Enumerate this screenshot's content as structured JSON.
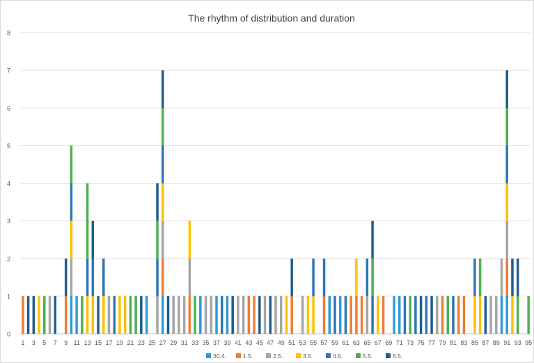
{
  "chart_data": {
    "type": "bar",
    "stacked": true,
    "title": "The rhythm of distribution and duration",
    "xlabel": "",
    "ylabel": "",
    "ylim": [
      0,
      8
    ],
    "yticks": [
      0,
      1,
      2,
      3,
      4,
      5,
      6,
      7,
      8
    ],
    "xtick_labels": [
      "1",
      "3",
      "5",
      "7",
      "9",
      "11",
      "13",
      "15",
      "17",
      "19",
      "21",
      "23",
      "25",
      "27",
      "29",
      "31",
      "33",
      "35",
      "37",
      "39",
      "41",
      "43",
      "45",
      "47",
      "49",
      "51",
      "53",
      "55",
      "57",
      "59",
      "61",
      "63",
      "65",
      "67",
      "69",
      "71",
      "73",
      "75",
      "77",
      "79",
      "81",
      "83",
      "85",
      "87",
      "89",
      "91",
      "93",
      "95"
    ],
    "grid": true,
    "legend_position": "bottom",
    "colors": {
      "30.4.": "#2E9AD6",
      "1.5.": "#ED7D31",
      "2.5.": "#A5A5A5",
      "3.5.": "#FFC000",
      "4.5.": "#2E75B6",
      "5.5.": "#4CB050",
      "6.5.": "#1F5C8B"
    },
    "categories": [
      1,
      2,
      3,
      4,
      5,
      6,
      7,
      8,
      9,
      10,
      11,
      12,
      13,
      14,
      15,
      16,
      17,
      18,
      19,
      20,
      21,
      22,
      23,
      24,
      25,
      26,
      27,
      28,
      29,
      30,
      31,
      32,
      33,
      34,
      35,
      36,
      37,
      38,
      39,
      40,
      41,
      42,
      43,
      44,
      45,
      46,
      47,
      48,
      49,
      50,
      51,
      52,
      53,
      54,
      55,
      56,
      57,
      58,
      59,
      60,
      61,
      62,
      63,
      64,
      65,
      66,
      67,
      68,
      69,
      70,
      71,
      72,
      73,
      74,
      75,
      76,
      77,
      78,
      79,
      80,
      81,
      82,
      83,
      84,
      85,
      86,
      87,
      88,
      89,
      90,
      91,
      92,
      93,
      94,
      95
    ],
    "series": [
      {
        "name": "30.4.",
        "values": [
          0,
          0,
          0,
          0,
          0,
          0,
          0,
          0,
          0,
          1,
          1,
          0,
          0,
          0,
          0,
          0,
          0,
          0,
          0,
          0,
          0,
          0,
          0,
          1,
          0,
          0,
          1,
          0,
          0,
          0,
          0,
          0,
          0,
          1,
          0,
          0,
          1,
          0,
          1,
          0,
          0,
          0,
          0,
          0,
          0,
          0,
          0,
          0,
          0,
          0,
          0,
          0,
          0,
          0,
          0,
          0,
          0,
          1,
          0,
          1,
          0,
          0,
          0,
          0,
          0,
          0,
          0,
          0,
          0,
          1,
          1,
          0,
          0,
          0,
          0,
          0,
          0,
          0,
          0,
          0,
          0,
          0,
          0,
          0,
          0,
          0,
          0,
          0,
          0,
          1,
          1,
          0,
          0,
          0,
          0
        ]
      },
      {
        "name": "1.5.",
        "values": [
          1,
          0,
          0,
          0,
          0,
          0,
          0,
          0,
          1,
          0,
          0,
          0,
          0,
          0,
          0,
          0,
          0,
          0,
          0,
          0,
          0,
          0,
          0,
          0,
          0,
          0,
          1,
          0,
          0,
          0,
          0,
          1,
          0,
          0,
          0,
          0,
          0,
          0,
          0,
          0,
          0,
          0,
          1,
          1,
          0,
          0,
          0,
          0,
          0,
          0,
          1,
          0,
          0,
          0,
          0,
          0,
          1,
          0,
          0,
          0,
          0,
          1,
          1,
          1,
          0,
          0,
          0,
          1,
          0,
          0,
          0,
          0,
          0,
          0,
          0,
          0,
          0,
          0,
          1,
          0,
          0,
          1,
          1,
          0,
          0,
          0,
          0,
          0,
          0,
          0,
          1,
          0,
          0,
          0,
          0
        ]
      },
      {
        "name": "2.5.",
        "values": [
          0,
          0,
          0,
          0,
          0,
          1,
          0,
          0,
          0,
          1,
          0,
          0,
          0,
          0,
          0,
          0,
          1,
          0,
          0,
          0,
          0,
          0,
          0,
          0,
          0,
          1,
          1,
          0,
          1,
          1,
          1,
          1,
          0,
          0,
          1,
          1,
          0,
          0,
          0,
          0,
          1,
          1,
          0,
          0,
          0,
          1,
          0,
          1,
          1,
          0,
          0,
          0,
          1,
          0,
          0,
          0,
          0,
          0,
          0,
          0,
          0,
          0,
          0,
          0,
          1,
          0,
          0,
          0,
          0,
          0,
          0,
          0,
          0,
          0,
          0,
          0,
          0,
          1,
          0,
          0,
          0,
          0,
          0,
          0,
          0,
          0,
          0,
          1,
          1,
          1,
          1,
          0,
          0,
          0,
          0
        ]
      },
      {
        "name": "3.5.",
        "values": [
          0,
          0,
          0,
          1,
          0,
          0,
          0,
          0,
          0,
          1,
          0,
          0,
          1,
          1,
          0,
          1,
          0,
          0,
          1,
          1,
          0,
          0,
          0,
          0,
          0,
          0,
          1,
          0,
          0,
          0,
          0,
          1,
          0,
          0,
          0,
          0,
          0,
          0,
          0,
          0,
          0,
          0,
          0,
          0,
          0,
          0,
          0,
          0,
          0,
          1,
          0,
          0,
          0,
          1,
          1,
          0,
          0,
          0,
          0,
          0,
          0,
          0,
          1,
          0,
          0,
          0,
          1,
          0,
          0,
          0,
          0,
          0,
          0,
          0,
          0,
          0,
          0,
          0,
          0,
          0,
          0,
          0,
          0,
          0,
          1,
          1,
          0,
          0,
          0,
          0,
          1,
          1,
          0,
          0,
          0
        ]
      },
      {
        "name": "4.5.",
        "values": [
          0,
          0,
          0,
          0,
          0,
          0,
          0,
          0,
          0,
          1,
          0,
          0,
          1,
          1,
          0,
          1,
          0,
          1,
          0,
          0,
          0,
          0,
          0,
          0,
          0,
          1,
          1,
          0,
          0,
          0,
          0,
          0,
          0,
          0,
          0,
          0,
          0,
          1,
          0,
          0,
          0,
          0,
          0,
          0,
          0,
          0,
          0,
          0,
          0,
          0,
          0,
          0,
          0,
          0,
          1,
          0,
          1,
          0,
          1,
          0,
          1,
          0,
          0,
          0,
          1,
          1,
          0,
          0,
          0,
          0,
          0,
          1,
          0,
          1,
          0,
          1,
          0,
          0,
          0,
          0,
          1,
          0,
          0,
          0,
          1,
          0,
          0,
          0,
          0,
          0,
          1,
          0,
          0,
          0,
          0
        ]
      },
      {
        "name": "5.5.",
        "values": [
          0,
          0,
          0,
          0,
          1,
          0,
          0,
          0,
          0,
          1,
          0,
          1,
          2,
          0,
          0,
          0,
          0,
          0,
          0,
          0,
          1,
          1,
          0,
          0,
          0,
          1,
          1,
          0,
          0,
          0,
          0,
          0,
          1,
          0,
          0,
          0,
          0,
          0,
          0,
          0,
          0,
          0,
          0,
          0,
          0,
          0,
          0,
          0,
          0,
          0,
          0,
          0,
          0,
          0,
          0,
          0,
          0,
          0,
          0,
          0,
          0,
          0,
          0,
          0,
          0,
          1,
          0,
          0,
          0,
          0,
          0,
          0,
          1,
          0,
          0,
          0,
          0,
          0,
          0,
          1,
          0,
          0,
          0,
          0,
          0,
          1,
          0,
          0,
          0,
          0,
          1,
          0,
          1,
          0,
          1
        ]
      },
      {
        "name": "6.5.",
        "values": [
          0,
          1,
          1,
          0,
          0,
          0,
          1,
          0,
          1,
          0,
          0,
          0,
          0,
          1,
          1,
          0,
          0,
          0,
          0,
          0,
          0,
          0,
          1,
          0,
          0,
          1,
          1,
          1,
          0,
          0,
          0,
          0,
          0,
          0,
          0,
          0,
          0,
          0,
          0,
          1,
          0,
          0,
          0,
          0,
          1,
          0,
          1,
          0,
          0,
          0,
          1,
          0,
          0,
          0,
          0,
          0,
          0,
          0,
          0,
          0,
          0,
          0,
          0,
          0,
          0,
          1,
          0,
          0,
          0,
          0,
          0,
          0,
          0,
          0,
          1,
          0,
          1,
          0,
          0,
          0,
          0,
          0,
          0,
          0,
          0,
          0,
          1,
          0,
          0,
          0,
          1,
          1,
          1,
          0,
          0
        ]
      }
    ]
  }
}
